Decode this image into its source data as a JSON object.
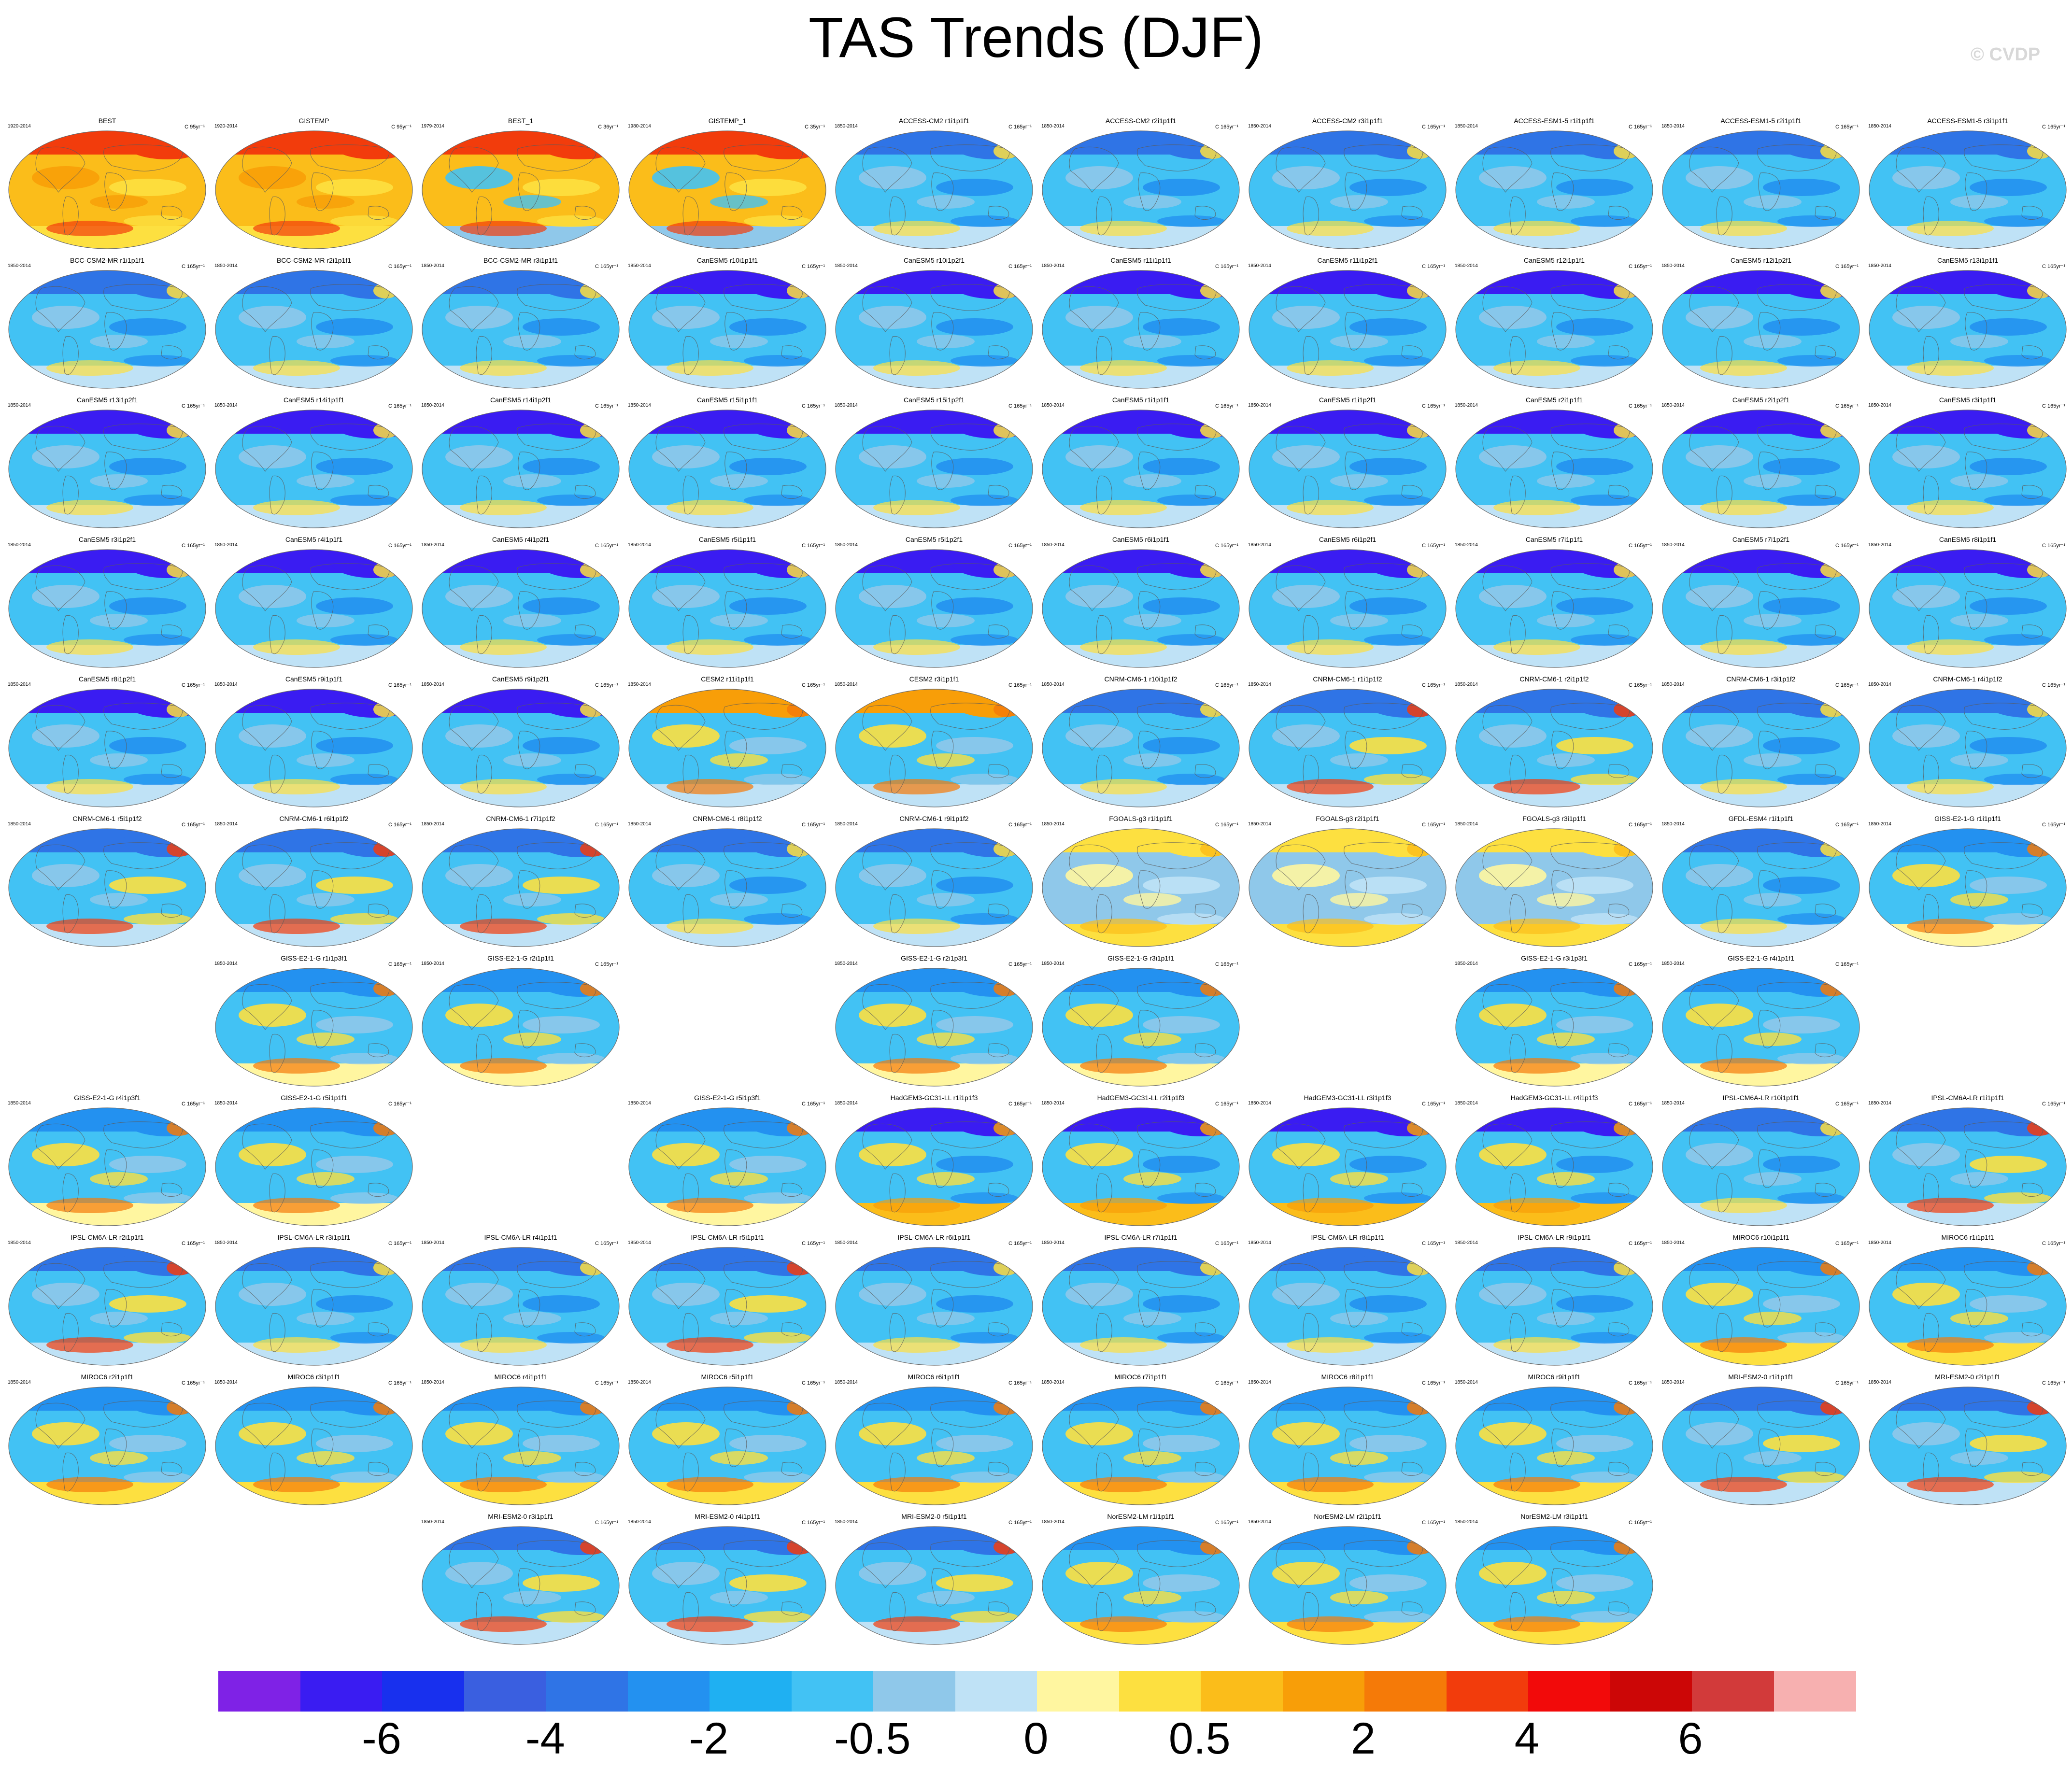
{
  "title": "TAS Trends (DJF)",
  "watermark": "© CVDP",
  "panels": [
    {
      "title": "BEST",
      "years": "1920-2014",
      "units": "C 95yr⁻¹",
      "row": 0,
      "col": 0,
      "style": "obs"
    },
    {
      "title": "GISTEMP",
      "years": "1920-2014",
      "units": "C 95yr⁻¹",
      "row": 0,
      "col": 1,
      "style": "obs"
    },
    {
      "title": "BEST_1",
      "years": "1979-2014",
      "units": "C 36yr⁻¹",
      "row": 0,
      "col": 2,
      "style": "obs1"
    },
    {
      "title": "GISTEMP_1",
      "years": "1980-2014",
      "units": "C 35yr⁻¹",
      "row": 0,
      "col": 3,
      "style": "obs1"
    },
    {
      "title": "ACCESS-CM2 r1i1p1f1",
      "years": "1850-2014",
      "units": "C 165yr⁻¹",
      "row": 0,
      "col": 4,
      "style": "cool"
    },
    {
      "title": "ACCESS-CM2 r2i1p1f1",
      "years": "1850-2014",
      "units": "C 165yr⁻¹",
      "row": 0,
      "col": 5,
      "style": "cool"
    },
    {
      "title": "ACCESS-CM2 r3i1p1f1",
      "years": "1850-2014",
      "units": "C 165yr⁻¹",
      "row": 0,
      "col": 6,
      "style": "cool"
    },
    {
      "title": "ACCESS-ESM1-5 r1i1p1f1",
      "years": "1850-2014",
      "units": "C 165yr⁻¹",
      "row": 0,
      "col": 7,
      "style": "cool"
    },
    {
      "title": "ACCESS-ESM1-5 r2i1p1f1",
      "years": "1850-2014",
      "units": "C 165yr⁻¹",
      "row": 0,
      "col": 8,
      "style": "cool"
    },
    {
      "title": "ACCESS-ESM1-5 r3i1p1f1",
      "years": "1850-2014",
      "units": "C 165yr⁻¹",
      "row": 0,
      "col": 9,
      "style": "cool"
    },
    {
      "title": "BCC-CSM2-MR r1i1p1f1",
      "years": "1850-2014",
      "units": "C 165yr⁻¹",
      "row": 1,
      "col": 0,
      "style": "cool"
    },
    {
      "title": "BCC-CSM2-MR r2i1p1f1",
      "years": "1850-2014",
      "units": "C 165yr⁻¹",
      "row": 1,
      "col": 1,
      "style": "cool"
    },
    {
      "title": "BCC-CSM2-MR r3i1p1f1",
      "years": "1850-2014",
      "units": "C 165yr⁻¹",
      "row": 1,
      "col": 2,
      "style": "cool"
    },
    {
      "title": "CanESM5 r10i1p1f1",
      "years": "1850-2014",
      "units": "C 165yr⁻¹",
      "row": 1,
      "col": 3,
      "style": "can"
    },
    {
      "title": "CanESM5 r10i1p2f1",
      "years": "1850-2014",
      "units": "C 165yr⁻¹",
      "row": 1,
      "col": 4,
      "style": "can"
    },
    {
      "title": "CanESM5 r11i1p1f1",
      "years": "1850-2014",
      "units": "C 165yr⁻¹",
      "row": 1,
      "col": 5,
      "style": "can"
    },
    {
      "title": "CanESM5 r11i1p2f1",
      "years": "1850-2014",
      "units": "C 165yr⁻¹",
      "row": 1,
      "col": 6,
      "style": "can"
    },
    {
      "title": "CanESM5 r12i1p1f1",
      "years": "1850-2014",
      "units": "C 165yr⁻¹",
      "row": 1,
      "col": 7,
      "style": "can"
    },
    {
      "title": "CanESM5 r12i1p2f1",
      "years": "1850-2014",
      "units": "C 165yr⁻¹",
      "row": 1,
      "col": 8,
      "style": "can"
    },
    {
      "title": "CanESM5 r13i1p1f1",
      "years": "1850-2014",
      "units": "C 165yr⁻¹",
      "row": 1,
      "col": 9,
      "style": "can"
    },
    {
      "title": "CanESM5 r13i1p2f1",
      "years": "1850-2014",
      "units": "C 165yr⁻¹",
      "row": 2,
      "col": 0,
      "style": "can"
    },
    {
      "title": "CanESM5 r14i1p1f1",
      "years": "1850-2014",
      "units": "C 165yr⁻¹",
      "row": 2,
      "col": 1,
      "style": "can"
    },
    {
      "title": "CanESM5 r14i1p2f1",
      "years": "1850-2014",
      "units": "C 165yr⁻¹",
      "row": 2,
      "col": 2,
      "style": "can"
    },
    {
      "title": "CanESM5 r15i1p1f1",
      "years": "1850-2014",
      "units": "C 165yr⁻¹",
      "row": 2,
      "col": 3,
      "style": "can"
    },
    {
      "title": "CanESM5 r15i1p2f1",
      "years": "1850-2014",
      "units": "C 165yr⁻¹",
      "row": 2,
      "col": 4,
      "style": "can"
    },
    {
      "title": "CanESM5 r1i1p1f1",
      "years": "1850-2014",
      "units": "C 165yr⁻¹",
      "row": 2,
      "col": 5,
      "style": "can"
    },
    {
      "title": "CanESM5 r1i1p2f1",
      "years": "1850-2014",
      "units": "C 165yr⁻¹",
      "row": 2,
      "col": 6,
      "style": "can"
    },
    {
      "title": "CanESM5 r2i1p1f1",
      "years": "1850-2014",
      "units": "C 165yr⁻¹",
      "row": 2,
      "col": 7,
      "style": "can"
    },
    {
      "title": "CanESM5 r2i1p2f1",
      "years": "1850-2014",
      "units": "C 165yr⁻¹",
      "row": 2,
      "col": 8,
      "style": "can"
    },
    {
      "title": "CanESM5 r3i1p1f1",
      "years": "1850-2014",
      "units": "C 165yr⁻¹",
      "row": 2,
      "col": 9,
      "style": "can"
    },
    {
      "title": "CanESM5 r3i1p2f1",
      "years": "1850-2014",
      "units": "C 165yr⁻¹",
      "row": 3,
      "col": 0,
      "style": "can"
    },
    {
      "title": "CanESM5 r4i1p1f1",
      "years": "1850-2014",
      "units": "C 165yr⁻¹",
      "row": 3,
      "col": 1,
      "style": "can"
    },
    {
      "title": "CanESM5 r4i1p2f1",
      "years": "1850-2014",
      "units": "C 165yr⁻¹",
      "row": 3,
      "col": 2,
      "style": "can"
    },
    {
      "title": "CanESM5 r5i1p1f1",
      "years": "1850-2014",
      "units": "C 165yr⁻¹",
      "row": 3,
      "col": 3,
      "style": "can"
    },
    {
      "title": "CanESM5 r5i1p2f1",
      "years": "1850-2014",
      "units": "C 165yr⁻¹",
      "row": 3,
      "col": 4,
      "style": "can"
    },
    {
      "title": "CanESM5 r6i1p1f1",
      "years": "1850-2014",
      "units": "C 165yr⁻¹",
      "row": 3,
      "col": 5,
      "style": "can"
    },
    {
      "title": "CanESM5 r6i1p2f1",
      "years": "1850-2014",
      "units": "C 165yr⁻¹",
      "row": 3,
      "col": 6,
      "style": "can"
    },
    {
      "title": "CanESM5 r7i1p1f1",
      "years": "1850-2014",
      "units": "C 165yr⁻¹",
      "row": 3,
      "col": 7,
      "style": "can"
    },
    {
      "title": "CanESM5 r7i1p2f1",
      "years": "1850-2014",
      "units": "C 165yr⁻¹",
      "row": 3,
      "col": 8,
      "style": "can"
    },
    {
      "title": "CanESM5 r8i1p1f1",
      "years": "1850-2014",
      "units": "C 165yr⁻¹",
      "row": 3,
      "col": 9,
      "style": "can"
    },
    {
      "title": "CanESM5 r8i1p2f1",
      "years": "1850-2014",
      "units": "C 165yr⁻¹",
      "row": 4,
      "col": 0,
      "style": "can"
    },
    {
      "title": "CanESM5 r9i1p1f1",
      "years": "1850-2014",
      "units": "C 165yr⁻¹",
      "row": 4,
      "col": 1,
      "style": "can"
    },
    {
      "title": "CanESM5 r9i1p2f1",
      "years": "1850-2014",
      "units": "C 165yr⁻¹",
      "row": 4,
      "col": 2,
      "style": "can"
    },
    {
      "title": "CESM2 r11i1p1f1",
      "years": "1850-2014",
      "units": "C 165yr⁻¹",
      "row": 4,
      "col": 3,
      "style": "warm"
    },
    {
      "title": "CESM2 r3i1p1f1",
      "years": "1850-2014",
      "units": "C 165yr⁻¹",
      "row": 4,
      "col": 4,
      "style": "warm"
    },
    {
      "title": "CNRM-CM6-1 r10i1p1f2",
      "years": "1850-2014",
      "units": "C 165yr⁻¹",
      "row": 4,
      "col": 5,
      "style": "cool"
    },
    {
      "title": "CNRM-CM6-1 r1i1p1f2",
      "years": "1850-2014",
      "units": "C 165yr⁻¹",
      "row": 4,
      "col": 6,
      "style": "mixed"
    },
    {
      "title": "CNRM-CM6-1 r2i1p1f2",
      "years": "1850-2014",
      "units": "C 165yr⁻¹",
      "row": 4,
      "col": 7,
      "style": "mixed"
    },
    {
      "title": "CNRM-CM6-1 r3i1p1f2",
      "years": "1850-2014",
      "units": "C 165yr⁻¹",
      "row": 4,
      "col": 8,
      "style": "cool"
    },
    {
      "title": "CNRM-CM6-1 r4i1p1f2",
      "years": "1850-2014",
      "units": "C 165yr⁻¹",
      "row": 4,
      "col": 9,
      "style": "cool"
    },
    {
      "title": "CNRM-CM6-1 r5i1p1f2",
      "years": "1850-2014",
      "units": "C 165yr⁻¹",
      "row": 5,
      "col": 0,
      "style": "mixed"
    },
    {
      "title": "CNRM-CM6-1 r6i1p1f2",
      "years": "1850-2014",
      "units": "C 165yr⁻¹",
      "row": 5,
      "col": 1,
      "style": "mixed"
    },
    {
      "title": "CNRM-CM6-1 r7i1p1f2",
      "years": "1850-2014",
      "units": "C 165yr⁻¹",
      "row": 5,
      "col": 2,
      "style": "mixed"
    },
    {
      "title": "CNRM-CM6-1 r8i1p1f2",
      "years": "1850-2014",
      "units": "C 165yr⁻¹",
      "row": 5,
      "col": 3,
      "style": "cool"
    },
    {
      "title": "CNRM-CM6-1 r9i1p1f2",
      "years": "1850-2014",
      "units": "C 165yr⁻¹",
      "row": 5,
      "col": 4,
      "style": "cool"
    },
    {
      "title": "FGOALS-g3 r1i1p1f1",
      "years": "1850-2014",
      "units": "C 165yr⁻¹",
      "row": 5,
      "col": 5,
      "style": "fgoals"
    },
    {
      "title": "FGOALS-g3 r2i1p1f1",
      "years": "1850-2014",
      "units": "C 165yr⁻¹",
      "row": 5,
      "col": 6,
      "style": "fgoals"
    },
    {
      "title": "FGOALS-g3 r3i1p1f1",
      "years": "1850-2014",
      "units": "C 165yr⁻¹",
      "row": 5,
      "col": 7,
      "style": "fgoals"
    },
    {
      "title": "GFDL-ESM4 r1i1p1f1",
      "years": "1850-2014",
      "units": "C 165yr⁻¹",
      "row": 5,
      "col": 8,
      "style": "cool"
    },
    {
      "title": "GISS-E2-1-G r1i1p1f1",
      "years": "1850-2014",
      "units": "C 165yr⁻¹",
      "row": 5,
      "col": 9,
      "style": "giss"
    },
    {
      "title": "GISS-E2-1-G r1i1p3f1",
      "years": "1850-2014",
      "units": "C 165yr⁻¹",
      "row": 6,
      "col": 1,
      "style": "giss"
    },
    {
      "title": "GISS-E2-1-G r2i1p1f1",
      "years": "1850-2014",
      "units": "C 165yr⁻¹",
      "row": 6,
      "col": 2,
      "style": "giss"
    },
    {
      "title": "GISS-E2-1-G r2i1p3f1",
      "years": "1850-2014",
      "units": "C 165yr⁻¹",
      "row": 6,
      "col": 4,
      "style": "giss"
    },
    {
      "title": "GISS-E2-1-G r3i1p1f1",
      "years": "1850-2014",
      "units": "C 165yr⁻¹",
      "row": 6,
      "col": 5,
      "style": "giss"
    },
    {
      "title": "GISS-E2-1-G r3i1p3f1",
      "years": "1850-2014",
      "units": "C 165yr⁻¹",
      "row": 6,
      "col": 7,
      "style": "giss"
    },
    {
      "title": "GISS-E2-1-G r4i1p1f1",
      "years": "1850-2014",
      "units": "C 165yr⁻¹",
      "row": 6,
      "col": 8,
      "style": "giss"
    },
    {
      "title": "GISS-E2-1-G r4i1p3f1",
      "years": "1850-2014",
      "units": "C 165yr⁻¹",
      "row": 7,
      "col": 0,
      "style": "giss"
    },
    {
      "title": "GISS-E2-1-G r5i1p1f1",
      "years": "1850-2014",
      "units": "C 165yr⁻¹",
      "row": 7,
      "col": 1,
      "style": "giss"
    },
    {
      "title": "GISS-E2-1-G r5i1p3f1",
      "years": "1850-2014",
      "units": "C 165yr⁻¹",
      "row": 7,
      "col": 3,
      "style": "giss"
    },
    {
      "title": "HadGEM3-GC31-LL r1i1p1f3",
      "years": "1850-2014",
      "units": "C 165yr⁻¹",
      "row": 7,
      "col": 4,
      "style": "had"
    },
    {
      "title": "HadGEM3-GC31-LL r2i1p1f3",
      "years": "1850-2014",
      "units": "C 165yr⁻¹",
      "row": 7,
      "col": 5,
      "style": "had"
    },
    {
      "title": "HadGEM3-GC31-LL r3i1p1f3",
      "years": "1850-2014",
      "units": "C 165yr⁻¹",
      "row": 7,
      "col": 6,
      "style": "had"
    },
    {
      "title": "HadGEM3-GC31-LL r4i1p1f3",
      "years": "1850-2014",
      "units": "C 165yr⁻¹",
      "row": 7,
      "col": 7,
      "style": "had"
    },
    {
      "title": "IPSL-CM6A-LR r10i1p1f1",
      "years": "1850-2014",
      "units": "C 165yr⁻¹",
      "row": 7,
      "col": 8,
      "style": "cool"
    },
    {
      "title": "IPSL-CM6A-LR r1i1p1f1",
      "years": "1850-2014",
      "units": "C 165yr⁻¹",
      "row": 7,
      "col": 9,
      "style": "mixed"
    },
    {
      "title": "IPSL-CM6A-LR r2i1p1f1",
      "years": "1850-2014",
      "units": "C 165yr⁻¹",
      "row": 8,
      "col": 0,
      "style": "mixed"
    },
    {
      "title": "IPSL-CM6A-LR r3i1p1f1",
      "years": "1850-2014",
      "units": "C 165yr⁻¹",
      "row": 8,
      "col": 1,
      "style": "cool"
    },
    {
      "title": "IPSL-CM6A-LR r4i1p1f1",
      "years": "1850-2014",
      "units": "C 165yr⁻¹",
      "row": 8,
      "col": 2,
      "style": "cool"
    },
    {
      "title": "IPSL-CM6A-LR r5i1p1f1",
      "years": "1850-2014",
      "units": "C 165yr⁻¹",
      "row": 8,
      "col": 3,
      "style": "mixed"
    },
    {
      "title": "IPSL-CM6A-LR r6i1p1f1",
      "years": "1850-2014",
      "units": "C 165yr⁻¹",
      "row": 8,
      "col": 4,
      "style": "cool"
    },
    {
      "title": "IPSL-CM6A-LR r7i1p1f1",
      "years": "1850-2014",
      "units": "C 165yr⁻¹",
      "row": 8,
      "col": 5,
      "style": "cool"
    },
    {
      "title": "IPSL-CM6A-LR r8i1p1f1",
      "years": "1850-2014",
      "units": "C 165yr⁻¹",
      "row": 8,
      "col": 6,
      "style": "cool"
    },
    {
      "title": "IPSL-CM6A-LR r9i1p1f1",
      "years": "1850-2014",
      "units": "C 165yr⁻¹",
      "row": 8,
      "col": 7,
      "style": "cool"
    },
    {
      "title": "MIROC6 r10i1p1f1",
      "years": "1850-2014",
      "units": "C 165yr⁻¹",
      "row": 8,
      "col": 8,
      "style": "miroc"
    },
    {
      "title": "MIROC6 r1i1p1f1",
      "years": "1850-2014",
      "units": "C 165yr⁻¹",
      "row": 8,
      "col": 9,
      "style": "miroc"
    },
    {
      "title": "MIROC6 r2i1p1f1",
      "years": "1850-2014",
      "units": "C 165yr⁻¹",
      "row": 9,
      "col": 0,
      "style": "miroc"
    },
    {
      "title": "MIROC6 r3i1p1f1",
      "years": "1850-2014",
      "units": "C 165yr⁻¹",
      "row": 9,
      "col": 1,
      "style": "miroc"
    },
    {
      "title": "MIROC6 r4i1p1f1",
      "years": "1850-2014",
      "units": "C 165yr⁻¹",
      "row": 9,
      "col": 2,
      "style": "miroc"
    },
    {
      "title": "MIROC6 r5i1p1f1",
      "years": "1850-2014",
      "units": "C 165yr⁻¹",
      "row": 9,
      "col": 3,
      "style": "miroc"
    },
    {
      "title": "MIROC6 r6i1p1f1",
      "years": "1850-2014",
      "units": "C 165yr⁻¹",
      "row": 9,
      "col": 4,
      "style": "miroc"
    },
    {
      "title": "MIROC6 r7i1p1f1",
      "years": "1850-2014",
      "units": "C 165yr⁻¹",
      "row": 9,
      "col": 5,
      "style": "miroc"
    },
    {
      "title": "MIROC6 r8i1p1f1",
      "years": "1850-2014",
      "units": "C 165yr⁻¹",
      "row": 9,
      "col": 6,
      "style": "miroc"
    },
    {
      "title": "MIROC6 r9i1p1f1",
      "years": "1850-2014",
      "units": "C 165yr⁻¹",
      "row": 9,
      "col": 7,
      "style": "miroc"
    },
    {
      "title": "MRI-ESM2-0 r1i1p1f1",
      "years": "1850-2014",
      "units": "C 165yr⁻¹",
      "row": 9,
      "col": 8,
      "style": "mixed"
    },
    {
      "title": "MRI-ESM2-0 r2i1p1f1",
      "years": "1850-2014",
      "units": "C 165yr⁻¹",
      "row": 9,
      "col": 9,
      "style": "mixed"
    },
    {
      "title": "MRI-ESM2-0 r3i1p1f1",
      "years": "1850-2014",
      "units": "C 165yr⁻¹",
      "row": 10,
      "col": 2,
      "style": "mixed"
    },
    {
      "title": "MRI-ESM2-0 r4i1p1f1",
      "years": "1850-2014",
      "units": "C 165yr⁻¹",
      "row": 10,
      "col": 3,
      "style": "mixed"
    },
    {
      "title": "MRI-ESM2-0 r5i1p1f1",
      "years": "1850-2014",
      "units": "C 165yr⁻¹",
      "row": 10,
      "col": 4,
      "style": "mixed"
    },
    {
      "title": "NorESM2-LM r1i1p1f1",
      "years": "1850-2014",
      "units": "C 165yr⁻¹",
      "row": 10,
      "col": 5,
      "style": "miroc"
    },
    {
      "title": "NorESM2-LM r2i1p1f1",
      "years": "1850-2014",
      "units": "C 165yr⁻¹",
      "row": 10,
      "col": 6,
      "style": "miroc"
    },
    {
      "title": "NorESM2-LM r3i1p1f1",
      "years": "1850-2014",
      "units": "C 165yr⁻¹",
      "row": 10,
      "col": 7,
      "style": "miroc"
    }
  ],
  "colorbar": {
    "colors": [
      "#7f22e6",
      "#3a1cf2",
      "#1830ee",
      "#3a5fe0",
      "#2f74e6",
      "#2391f0",
      "#1fb0f2",
      "#42c2f4",
      "#8fc8ea",
      "#bfe2f6",
      "#fff6a0",
      "#fde040",
      "#fbbd1a",
      "#f89e08",
      "#f57a08",
      "#f23c0c",
      "#f20a0a",
      "#cc0606",
      "#d23a3a",
      "#f7b0b0"
    ],
    "labels": [
      "-6",
      "-4",
      "-2",
      "-0.5",
      "0",
      "0.5",
      "2",
      "4",
      "6"
    ]
  },
  "style_colors": {
    "obs": {
      "base": "#fbbd1a",
      "b1": "#f89e08",
      "b2": "#f23c0c",
      "b3": "#fde040",
      "n": "#f23c0c",
      "s": "#fde040"
    },
    "obs1": {
      "base": "#fbbd1a",
      "b1": "#42c2f4",
      "b2": "#f23c0c",
      "b3": "#fde040",
      "n": "#f23c0c",
      "s": "#8fc8ea"
    },
    "cool": {
      "base": "#42c2f4",
      "b1": "#8fc8ea",
      "b2": "#fde040",
      "b3": "#2391f0",
      "n": "#2f74e6",
      "s": "#bfe2f6"
    },
    "can": {
      "base": "#42c2f4",
      "b1": "#8fc8ea",
      "b2": "#fde040",
      "b3": "#2391f0",
      "n": "#3a1cf2",
      "s": "#bfe2f6"
    },
    "warm": {
      "base": "#42c2f4",
      "b1": "#fde040",
      "b2": "#f57a08",
      "b3": "#8fc8ea",
      "n": "#f89e08",
      "s": "#bfe2f6"
    },
    "mixed": {
      "base": "#42c2f4",
      "b1": "#8fc8ea",
      "b2": "#f23c0c",
      "b3": "#fde040",
      "n": "#2f74e6",
      "s": "#bfe2f6"
    },
    "fgoals": {
      "base": "#8fc8ea",
      "b1": "#fff6a0",
      "b2": "#fbbd1a",
      "b3": "#bfe2f6",
      "n": "#fde040",
      "s": "#fde040"
    },
    "giss": {
      "base": "#42c2f4",
      "b1": "#fde040",
      "b2": "#f57a08",
      "b3": "#8fc8ea",
      "n": "#2391f0",
      "s": "#fff6a0"
    },
    "had": {
      "base": "#42c2f4",
      "b1": "#fde040",
      "b2": "#f89e08",
      "b3": "#2391f0",
      "n": "#3a1cf2",
      "s": "#fbbd1a"
    },
    "miroc": {
      "base": "#42c2f4",
      "b1": "#fde040",
      "b2": "#f57a08",
      "b3": "#8fc8ea",
      "n": "#2391f0",
      "s": "#fde040"
    }
  }
}
